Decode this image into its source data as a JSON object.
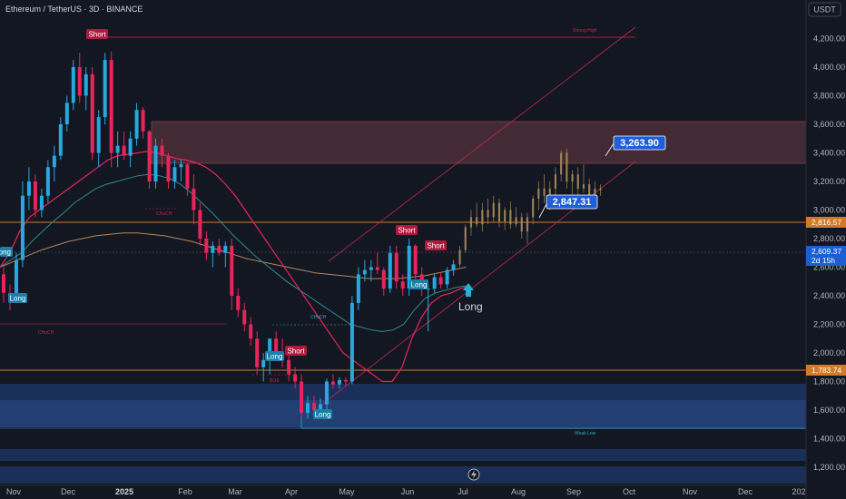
{
  "chart_title": "Ethereum / TetherUS · 3D · BINANCE",
  "currency_button": "USDT",
  "colors": {
    "background": "#131722",
    "up": "#26a8e0",
    "down": "#e8245a",
    "projection": "#a88c5a",
    "ema_fast": "#e8245a",
    "ema_slow": "#2e8b8b",
    "ma_long": "#b8845a",
    "supply_zone": "#6b3a44",
    "demand_zone": "#1e3a6e",
    "level_line": "#d07a2a",
    "callout_blue": "#1e5fd8",
    "short_tag": "#b0183c",
    "long_tag": "#1c7fa8"
  },
  "y_axis_ticks": [
    "4,200.00",
    "4,000.00",
    "3,800.00",
    "3,600.00",
    "3,400.00",
    "3,200.00",
    "3,000.00",
    "2,800.00",
    "2,600.00",
    "2,400.00",
    "2,200.00",
    "2,000.00",
    "1,800.00",
    "1,600.00",
    "1,400.00",
    "1,200.00"
  ],
  "x_axis_ticks": [
    "Nov",
    "Dec",
    "2025",
    "Feb",
    "Mar",
    "Apr",
    "May",
    "Jun",
    "Jul",
    "Aug",
    "Sep",
    "Oct",
    "Nov",
    "Dec",
    "202"
  ],
  "price_tags": {
    "upper_level": "2,816.57",
    "current_price": "2,609.37",
    "countdown": "2d 15h",
    "lower_level": "1,783.74"
  },
  "callouts": {
    "target": "3,263.90",
    "projection_low": "2,847.31"
  },
  "annotations": {
    "strong_high": "Strong High",
    "weak_low": "Weak Low",
    "choch_1": "CHoCH",
    "choch_2": "CHoCH",
    "choch_3": "CHoCH",
    "bos": "BOS",
    "long_arrow_label": "Long"
  },
  "signals": {
    "short_1": "Short",
    "short_2": "Short",
    "short_3": "Short",
    "short_4": "Short",
    "long_1": "Long",
    "long_2": "Long",
    "long_3": "Long",
    "long_4": "Long",
    "long_edge": "Long"
  },
  "chart_data": {
    "type": "candlestick",
    "symbol": "ETHUSDT",
    "interval": "3D",
    "ylim": [
      1100,
      4300
    ],
    "y_ticks": [
      4200,
      4000,
      3800,
      3600,
      3400,
      3200,
      3000,
      2800,
      2600,
      2400,
      2200,
      2000,
      1800,
      1600,
      1400,
      1200
    ],
    "x_categories": [
      "Nov",
      "Dec",
      "2025",
      "Feb",
      "Mar",
      "Apr",
      "May",
      "Jun",
      "Jul",
      "Aug",
      "Sep",
      "Oct",
      "Nov",
      "Dec",
      "202"
    ],
    "candles_ohlc": [
      [
        2550,
        2600,
        2350,
        2420
      ],
      [
        2420,
        2480,
        2300,
        2380
      ],
      [
        2380,
        2700,
        2350,
        2650
      ],
      [
        2650,
        3200,
        2600,
        3100
      ],
      [
        3100,
        3300,
        3000,
        3200
      ],
      [
        3200,
        3250,
        2950,
        3000
      ],
      [
        3000,
        3150,
        2950,
        3100
      ],
      [
        3100,
        3350,
        3050,
        3300
      ],
      [
        3300,
        3450,
        3200,
        3380
      ],
      [
        3380,
        3650,
        3350,
        3600
      ],
      [
        3600,
        3800,
        3550,
        3750
      ],
      [
        3750,
        4050,
        3700,
        4000
      ],
      [
        4000,
        4100,
        3750,
        3800
      ],
      [
        3800,
        4000,
        3700,
        3950
      ],
      [
        3950,
        4000,
        3350,
        3400
      ],
      [
        3400,
        3700,
        3300,
        3650
      ],
      [
        3650,
        4100,
        3600,
        4050
      ],
      [
        4050,
        4110,
        3300,
        3400
      ],
      [
        3400,
        3550,
        3300,
        3450
      ],
      [
        3450,
        3550,
        3350,
        3380
      ],
      [
        3380,
        3550,
        3300,
        3500
      ],
      [
        3500,
        3750,
        3450,
        3700
      ],
      [
        3700,
        3720,
        3500,
        3550
      ],
      [
        3550,
        3560,
        3150,
        3200
      ],
      [
        3200,
        3500,
        3150,
        3450
      ],
      [
        3450,
        3500,
        3300,
        3380
      ],
      [
        3380,
        3400,
        3150,
        3200
      ],
      [
        3200,
        3350,
        3150,
        3300
      ],
      [
        3300,
        3350,
        3200,
        3320
      ],
      [
        3320,
        3330,
        3100,
        3150
      ],
      [
        3150,
        3250,
        2900,
        3000
      ],
      [
        3000,
        3050,
        2750,
        2800
      ],
      [
        2800,
        2850,
        2650,
        2700
      ],
      [
        2700,
        2780,
        2600,
        2750
      ],
      [
        2750,
        2800,
        2680,
        2700
      ],
      [
        2700,
        2780,
        2600,
        2750
      ],
      [
        2750,
        2800,
        2300,
        2400
      ],
      [
        2400,
        2450,
        2250,
        2300
      ],
      [
        2300,
        2350,
        2150,
        2200
      ],
      [
        2200,
        2250,
        2050,
        2100
      ],
      [
        2100,
        2150,
        1850,
        1900
      ],
      [
        1900,
        2000,
        1800,
        1950
      ],
      [
        1950,
        2050,
        1850,
        2100
      ],
      [
        2100,
        2150,
        1950,
        2000
      ],
      [
        2000,
        2100,
        1900,
        1950
      ],
      [
        1950,
        2000,
        1800,
        1850
      ],
      [
        1850,
        1900,
        1750,
        1800
      ],
      [
        1800,
        1850,
        1550,
        1580
      ],
      [
        1580,
        1700,
        1540,
        1650
      ],
      [
        1650,
        1700,
        1560,
        1600
      ],
      [
        1600,
        1680,
        1550,
        1640
      ],
      [
        1640,
        1820,
        1600,
        1800
      ],
      [
        1800,
        1850,
        1750,
        1780
      ],
      [
        1780,
        1830,
        1750,
        1810
      ],
      [
        1810,
        1830,
        1770,
        1800
      ],
      [
        1800,
        2400,
        1780,
        2350
      ],
      [
        2350,
        2600,
        2300,
        2550
      ],
      [
        2550,
        2650,
        2500,
        2580
      ],
      [
        2580,
        2650,
        2500,
        2600
      ],
      [
        2600,
        2700,
        2550,
        2580
      ],
      [
        2580,
        2600,
        2400,
        2450
      ],
      [
        2450,
        2750,
        2420,
        2700
      ],
      [
        2700,
        2750,
        2450,
        2500
      ],
      [
        2500,
        2550,
        2400,
        2450
      ],
      [
        2450,
        2800,
        2400,
        2750
      ],
      [
        2750,
        2760,
        2500,
        2550
      ],
      [
        2550,
        2600,
        2400,
        2450
      ],
      [
        2450,
        2480,
        2150,
        2450
      ],
      [
        2450,
        2550,
        2420,
        2530
      ],
      [
        2530,
        2560,
        2450,
        2480
      ],
      [
        2480,
        2600,
        2450,
        2580
      ],
      [
        2580,
        2650,
        2540,
        2620
      ]
    ],
    "projection_ohlc": [
      [
        2620,
        2750,
        2600,
        2720
      ],
      [
        2720,
        2900,
        2700,
        2880
      ],
      [
        2880,
        3000,
        2820,
        2950
      ],
      [
        2950,
        3050,
        2880,
        2900
      ],
      [
        2900,
        3050,
        2850,
        3000
      ],
      [
        3000,
        3080,
        2900,
        2950
      ],
      [
        2950,
        3100,
        2920,
        3050
      ],
      [
        3050,
        3080,
        2880,
        2920
      ],
      [
        2920,
        3020,
        2860,
        3000
      ],
      [
        3000,
        3060,
        2870,
        2900
      ],
      [
        2900,
        3020,
        2880,
        2950
      ],
      [
        2950,
        2980,
        2800,
        2850
      ],
      [
        2850,
        2980,
        2760,
        2950
      ],
      [
        2950,
        3100,
        2900,
        3080
      ],
      [
        3080,
        3200,
        3000,
        3150
      ],
      [
        3150,
        3250,
        3050,
        3100
      ],
      [
        3100,
        3200,
        3000,
        3150
      ],
      [
        3150,
        3300,
        3100,
        3250
      ],
      [
        3250,
        3420,
        3200,
        3400
      ],
      [
        3400,
        3430,
        3150,
        3200
      ],
      [
        3200,
        3280,
        3100,
        3250
      ],
      [
        3250,
        3300,
        3100,
        3150
      ],
      [
        3150,
        3320,
        3120,
        3180
      ],
      [
        3180,
        3220,
        3050,
        3100
      ],
      [
        3100,
        3200,
        3080,
        3150
      ],
      [
        3150,
        3180,
        3100,
        3140
      ]
    ],
    "ema_fast": [
      2600,
      2700,
      2850,
      2950,
      3000,
      3050,
      3100,
      3150,
      3200,
      3250,
      3300,
      3350,
      3380,
      3390,
      3400,
      3410,
      3400,
      3380,
      3360,
      3350,
      3330,
      3300,
      3250,
      3180,
      3100,
      3000,
      2900,
      2800,
      2700,
      2600,
      2500,
      2400,
      2300,
      2200,
      2100,
      2000,
      1950,
      1900,
      1850,
      1800,
      1800,
      1900,
      2100,
      2250,
      2350,
      2400,
      2420,
      2450,
      2470
    ],
    "ema_slow": [
      2600,
      2650,
      2700,
      2780,
      2850,
      2920,
      2980,
      3050,
      3100,
      3150,
      3180,
      3200,
      3220,
      3240,
      3250,
      3240,
      3220,
      3180,
      3120,
      3050,
      2980,
      2900,
      2820,
      2750,
      2680,
      2620,
      2560,
      2500,
      2450,
      2400,
      2350,
      2300,
      2250,
      2200,
      2180,
      2160,
      2150,
      2160,
      2200,
      2300,
      2380,
      2420,
      2440,
      2460,
      2470
    ],
    "ma_long": [
      2600,
      2640,
      2680,
      2720,
      2750,
      2780,
      2800,
      2820,
      2830,
      2840,
      2840,
      2830,
      2820,
      2800,
      2780,
      2750,
      2720,
      2690,
      2660,
      2640,
      2620,
      2600,
      2580,
      2560,
      2550,
      2540,
      2530,
      2520,
      2520,
      2520,
      2530,
      2540,
      2560,
      2580,
      2600
    ],
    "zones": {
      "supply": [
        3220,
        3520
      ],
      "demand": [
        1380,
        1700
      ]
    },
    "levels": {
      "strong_high": 4110,
      "upper_orange": 2816.57,
      "current": 2609.37,
      "lower_orange": 1783.74,
      "weak_low": 1380
    }
  }
}
